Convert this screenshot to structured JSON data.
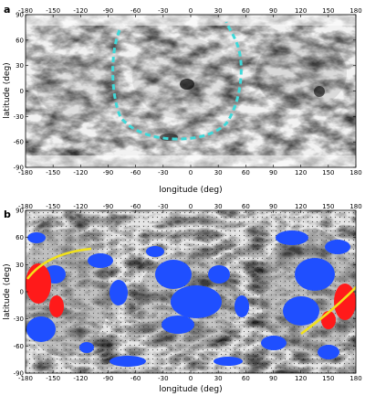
{
  "panels": [
    {
      "label": "a",
      "xlabel": "longitude (deg)",
      "ylabel": "latitude (deg)",
      "x_ticks": [
        -180,
        -150,
        -120,
        -90,
        -60,
        -30,
        0,
        30,
        60,
        90,
        120,
        150,
        180
      ],
      "y_ticks": [
        90,
        60,
        30,
        0,
        -30,
        -60,
        -90
      ],
      "xlim": [
        -180,
        180
      ],
      "ylim": [
        -90,
        90
      ],
      "basin_outline_color": "#3fd9d9"
    },
    {
      "label": "b",
      "xlabel": "longitude (deg)",
      "ylabel": "latitude (deg)",
      "x_ticks": [
        -180,
        -150,
        -120,
        -90,
        -60,
        -30,
        0,
        30,
        60,
        90,
        120,
        150,
        180
      ],
      "y_ticks": [
        90,
        60,
        30,
        0,
        -30,
        -60,
        -90
      ],
      "xlim": [
        -180,
        180
      ],
      "ylim": [
        -90,
        90
      ],
      "point_colors": [
        "#1f4fff",
        "#ff1a1a",
        "#000000"
      ],
      "arc_color": "#f2e21a"
    }
  ]
}
